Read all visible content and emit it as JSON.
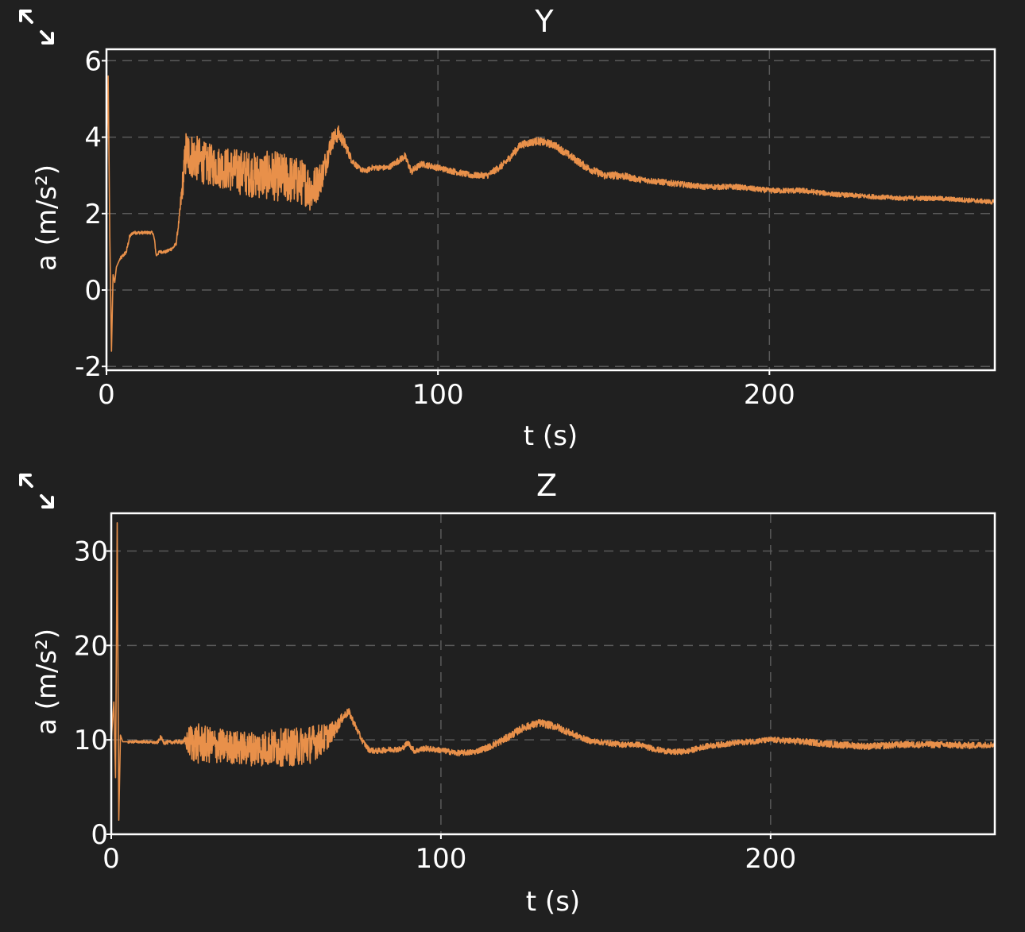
{
  "colors": {
    "background": "#202020",
    "axes": "#ffffff",
    "grid": "#5a5a5a",
    "series": "#e8904a",
    "text": "#ffffff"
  },
  "controls": {
    "expand_icon": "diagonal-expand-arrows"
  },
  "chart_data": [
    {
      "type": "line",
      "title": "Y",
      "xlabel": "t (s)",
      "ylabel": "a (m/s²)",
      "xlim": [
        0,
        268
      ],
      "ylim": [
        -2.1,
        6.3
      ],
      "xticks": [
        0,
        100,
        200
      ],
      "xtick_labels": [
        "0",
        "100",
        "200"
      ],
      "yticks": [
        -2,
        0,
        2,
        4,
        6
      ],
      "ytick_labels": [
        "-2",
        "0",
        "2",
        "4",
        "6"
      ],
      "grid": true,
      "series": [
        {
          "x": [
            0,
            0.5,
            1,
            1.5,
            2,
            2.5,
            3,
            4,
            5,
            6,
            7,
            8,
            10,
            12,
            14,
            14.5,
            15,
            16,
            18,
            20,
            21,
            22,
            23,
            24,
            26,
            28,
            30,
            35,
            40,
            45,
            50,
            55,
            60,
            62,
            65,
            68,
            70,
            72,
            74,
            76,
            78,
            80,
            85,
            90,
            92,
            95,
            100,
            105,
            110,
            115,
            120,
            125,
            130,
            135,
            140,
            145,
            150,
            155,
            160,
            170,
            180,
            190,
            200,
            210,
            220,
            230,
            240,
            250,
            260,
            268
          ],
          "y": [
            3.0,
            5.6,
            1.4,
            -1.6,
            0.4,
            0.2,
            0.6,
            0.8,
            0.9,
            1.0,
            1.4,
            1.5,
            1.5,
            1.5,
            1.5,
            1.3,
            0.9,
            1.0,
            1.0,
            1.1,
            1.2,
            1.9,
            2.8,
            3.6,
            3.5,
            3.4,
            3.3,
            3.2,
            3.1,
            3.0,
            3.0,
            2.9,
            2.8,
            2.6,
            3.0,
            3.9,
            4.1,
            3.8,
            3.4,
            3.2,
            3.1,
            3.2,
            3.2,
            3.5,
            3.1,
            3.3,
            3.2,
            3.1,
            3.0,
            3.0,
            3.3,
            3.8,
            3.9,
            3.8,
            3.5,
            3.2,
            3.0,
            3.0,
            2.9,
            2.8,
            2.7,
            2.7,
            2.6,
            2.6,
            2.5,
            2.45,
            2.4,
            2.4,
            2.35,
            2.3
          ],
          "noise": [
            0,
            0,
            0,
            0,
            0.15,
            0.1,
            0.1,
            0.05,
            0.05,
            0.05,
            0.05,
            0.04,
            0.04,
            0.04,
            0.04,
            0.04,
            0.04,
            0.04,
            0.04,
            0.05,
            0.05,
            0.1,
            0.4,
            0.6,
            0.6,
            0.6,
            0.55,
            0.55,
            0.6,
            0.6,
            0.65,
            0.65,
            0.6,
            0.6,
            0.4,
            0.25,
            0.2,
            0.15,
            0.1,
            0.07,
            0.07,
            0.07,
            0.07,
            0.1,
            0.1,
            0.08,
            0.08,
            0.08,
            0.08,
            0.08,
            0.1,
            0.1,
            0.1,
            0.1,
            0.1,
            0.1,
            0.1,
            0.1,
            0.08,
            0.08,
            0.07,
            0.07,
            0.07,
            0.07,
            0.06,
            0.06,
            0.06,
            0.06,
            0.06,
            0.06
          ]
        }
      ]
    },
    {
      "type": "line",
      "title": "Z",
      "xlabel": "t (s)",
      "ylabel": "a (m/s²)",
      "xlim": [
        0,
        268
      ],
      "ylim": [
        0,
        34
      ],
      "xticks": [
        0,
        100,
        200
      ],
      "xtick_labels": [
        "0",
        "100",
        "200"
      ],
      "yticks": [
        0,
        10,
        20,
        30
      ],
      "ytick_labels": [
        "0",
        "10",
        "20",
        "30"
      ],
      "grid": true,
      "series": [
        {
          "x": [
            0,
            0.8,
            1.3,
            1.8,
            2.3,
            2.8,
            3.5,
            5,
            10,
            14,
            15,
            16,
            20,
            22,
            24,
            26,
            28,
            35,
            40,
            45,
            50,
            55,
            60,
            65,
            68,
            70,
            72,
            74,
            76,
            78,
            80,
            85,
            88,
            90,
            92,
            95,
            100,
            105,
            110,
            115,
            120,
            125,
            130,
            135,
            140,
            145,
            150,
            155,
            160,
            165,
            170,
            175,
            180,
            190,
            200,
            210,
            220,
            230,
            240,
            250,
            260,
            268
          ],
          "y": [
            10,
            14,
            6,
            33,
            1.5,
            10.5,
            9.8,
            9.8,
            9.8,
            9.7,
            10.3,
            9.7,
            9.8,
            9.8,
            9.8,
            9.6,
            9.5,
            9.3,
            9.1,
            9.1,
            9.2,
            9.2,
            9.5,
            10.2,
            11.2,
            12.3,
            13.0,
            11.5,
            10.0,
            9.0,
            8.8,
            9.0,
            9.0,
            9.7,
            8.8,
            9.1,
            8.9,
            8.6,
            8.7,
            9.3,
            10.2,
            11.3,
            11.8,
            11.4,
            10.6,
            9.9,
            9.7,
            9.5,
            9.5,
            9.0,
            8.7,
            8.8,
            9.3,
            9.7,
            10.0,
            9.8,
            9.5,
            9.3,
            9.5,
            9.5,
            9.4,
            9.5
          ],
          "noise": [
            0,
            0,
            0,
            0,
            0,
            0,
            0.2,
            0.15,
            0.15,
            0.15,
            0.2,
            0.2,
            0.2,
            0.25,
            2.0,
            2.2,
            2.0,
            1.8,
            1.8,
            1.9,
            2.0,
            2.0,
            2.1,
            1.5,
            0.8,
            0.5,
            0.4,
            0.35,
            0.3,
            0.3,
            0.3,
            0.3,
            0.3,
            0.3,
            0.3,
            0.3,
            0.3,
            0.3,
            0.3,
            0.35,
            0.4,
            0.4,
            0.4,
            0.4,
            0.35,
            0.3,
            0.3,
            0.3,
            0.3,
            0.3,
            0.3,
            0.3,
            0.3,
            0.3,
            0.3,
            0.35,
            0.35,
            0.35,
            0.35,
            0.35,
            0.35,
            0.3
          ]
        }
      ]
    }
  ]
}
